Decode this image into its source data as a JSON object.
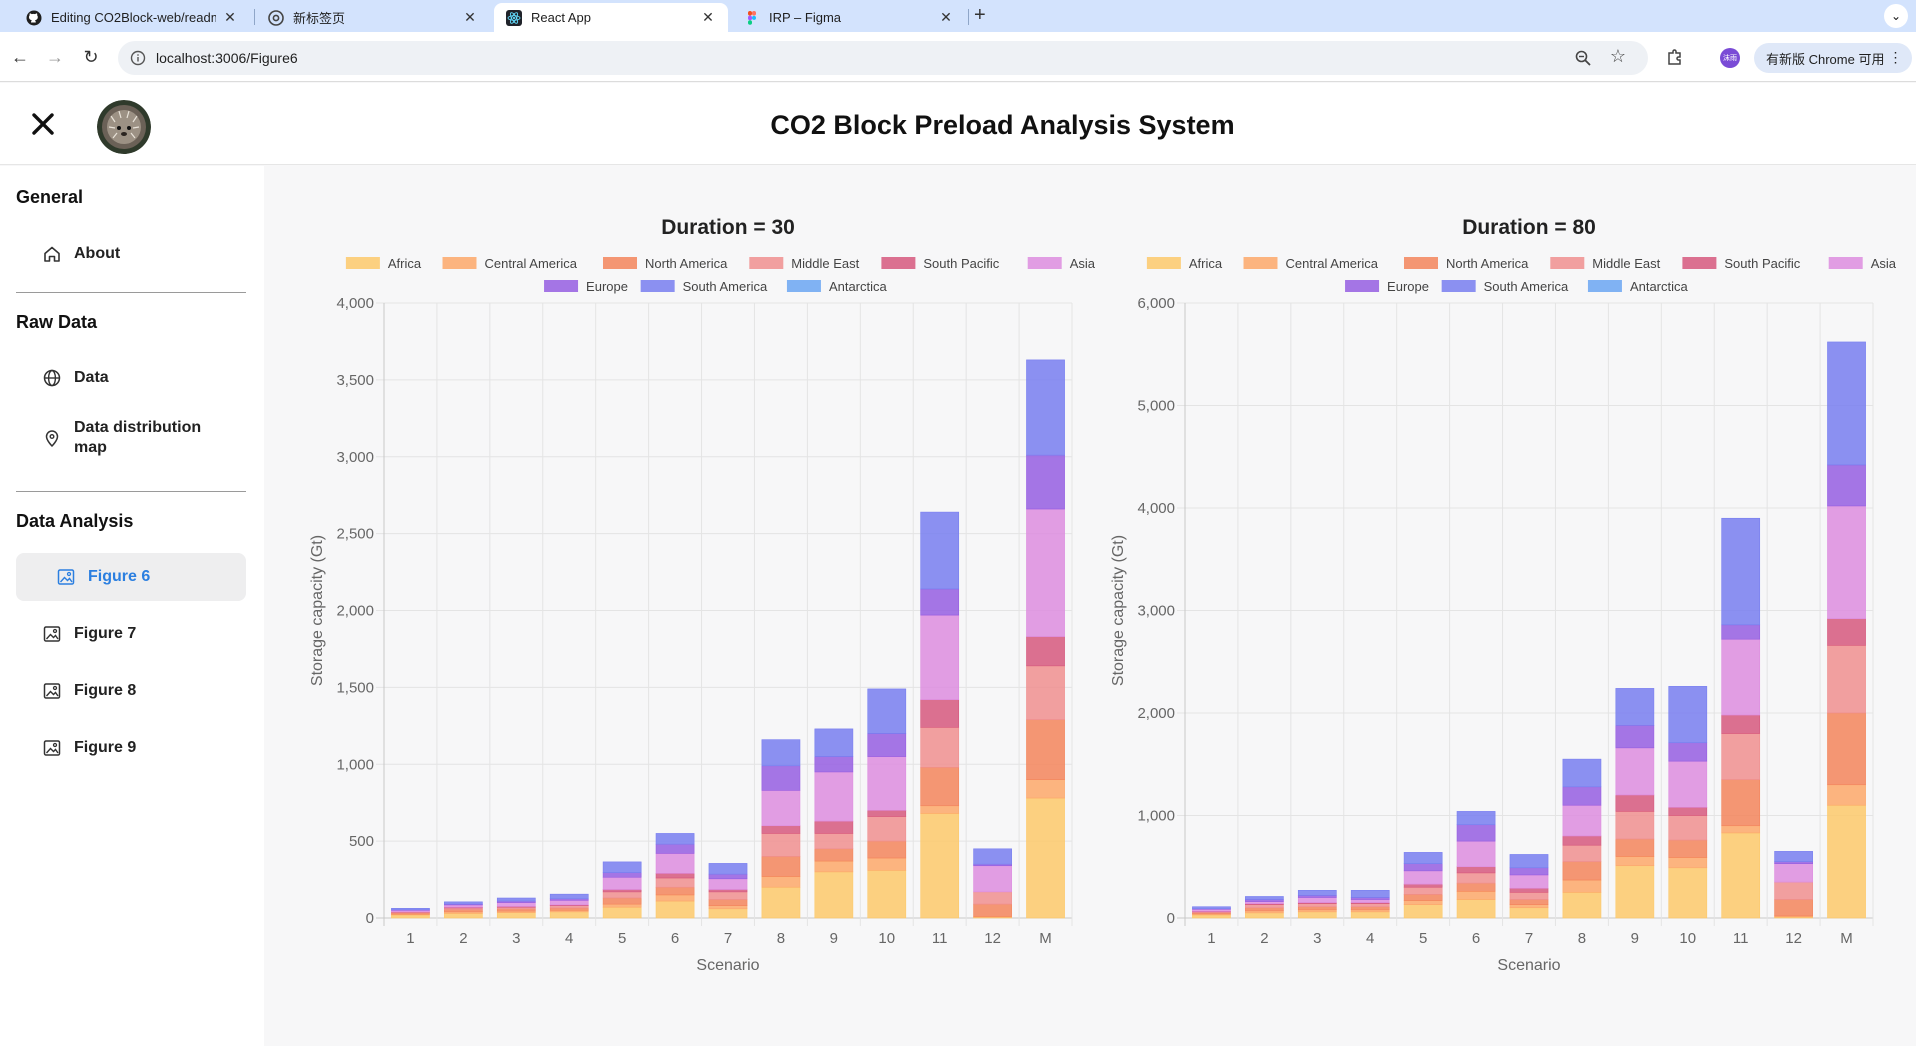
{
  "browser": {
    "tabs": [
      {
        "title": "Editing CO2Block-web/readm",
        "icon": "github-icon"
      },
      {
        "title": "新标签页",
        "icon": "chrome-icon"
      },
      {
        "title": "React App",
        "icon": "react-icon"
      },
      {
        "title": "IRP – Figma",
        "icon": "figma-icon"
      }
    ],
    "url": "localhost:3006/Figure6",
    "update_label": "有新版 Chrome 可用",
    "profile_label": "沫雨"
  },
  "app": {
    "title": "CO2 Block Preload Analysis System"
  },
  "sidebar": {
    "sections": [
      {
        "title": "General",
        "items": [
          {
            "label": "About",
            "icon": "home-icon"
          }
        ]
      },
      {
        "title": "Raw Data",
        "items": [
          {
            "label": "Data",
            "icon": "globe-icon"
          },
          {
            "label": "Data distribution map",
            "icon": "location-pin-icon"
          }
        ]
      },
      {
        "title": "Data Analysis",
        "items": [
          {
            "label": "Figure 6",
            "icon": "image-icon",
            "active": true
          },
          {
            "label": "Figure 7",
            "icon": "image-icon"
          },
          {
            "label": "Figure 8",
            "icon": "image-icon"
          },
          {
            "label": "Figure 9",
            "icon": "image-icon"
          }
        ]
      }
    ]
  },
  "colors": {
    "Africa": "#fdc96b",
    "Central America": "#fda86a",
    "North America": "#f3855c",
    "Middle East": "#f08f8f",
    "South Pacific": "#d6587e",
    "Asia": "#dd8ddf",
    "Europe": "#955ee2",
    "South America": "#787ef0",
    "Antarctica": "#6ba6f2",
    "accent": "#2b7fe0"
  },
  "chart_data": [
    {
      "type": "bar",
      "stacked": true,
      "title": "Duration = 30",
      "xlabel": "Scenario",
      "ylabel": "Storage capacity (Gt)",
      "ylim": [
        0,
        4000
      ],
      "yticks": [
        0,
        500,
        1000,
        1500,
        2000,
        2500,
        3000,
        3500,
        4000
      ],
      "yticklabels": [
        "0",
        "500",
        "1,000",
        "1,500",
        "2,000",
        "2,500",
        "3,000",
        "3,500",
        "4,000"
      ],
      "grid": true,
      "legend_position": "top",
      "categories": [
        "1",
        "2",
        "3",
        "4",
        "5",
        "6",
        "7",
        "8",
        "9",
        "10",
        "11",
        "12",
        "M"
      ],
      "series": [
        {
          "name": "Africa",
          "values": [
            20,
            30,
            35,
            40,
            70,
            110,
            60,
            200,
            300,
            310,
            680,
            5,
            780
          ]
        },
        {
          "name": "Central America",
          "values": [
            5,
            10,
            10,
            10,
            20,
            40,
            20,
            70,
            70,
            80,
            50,
            5,
            120
          ]
        },
        {
          "name": "North America",
          "values": [
            8,
            15,
            15,
            15,
            40,
            50,
            40,
            130,
            80,
            110,
            250,
            80,
            390
          ]
        },
        {
          "name": "Middle East",
          "values": [
            5,
            10,
            10,
            15,
            40,
            60,
            50,
            150,
            100,
            160,
            260,
            80,
            350
          ]
        },
        {
          "name": "South Pacific",
          "values": [
            2,
            5,
            5,
            5,
            15,
            30,
            15,
            50,
            80,
            40,
            180,
            0,
            190
          ]
        },
        {
          "name": "Asia",
          "values": [
            10,
            15,
            25,
            30,
            80,
            130,
            70,
            230,
            320,
            350,
            550,
            170,
            830
          ]
        },
        {
          "name": "Europe",
          "values": [
            3,
            5,
            10,
            10,
            30,
            60,
            30,
            160,
            100,
            150,
            170,
            10,
            350
          ]
        },
        {
          "name": "South America",
          "values": [
            10,
            15,
            20,
            30,
            70,
            70,
            70,
            170,
            180,
            290,
            500,
            100,
            620
          ]
        },
        {
          "name": "Antarctica",
          "values": [
            0,
            0,
            0,
            0,
            0,
            0,
            0,
            0,
            0,
            0,
            0,
            0,
            0
          ]
        }
      ]
    },
    {
      "type": "bar",
      "stacked": true,
      "title": "Duration = 80",
      "xlabel": "Scenario",
      "ylabel": "Storage capacity (Gt)",
      "ylim": [
        0,
        6000
      ],
      "yticks": [
        0,
        1000,
        2000,
        3000,
        4000,
        5000,
        6000
      ],
      "yticklabels": [
        "0",
        "1,000",
        "2,000",
        "3,000",
        "4,000",
        "5,000",
        "6,000"
      ],
      "grid": true,
      "legend_position": "top",
      "categories": [
        "1",
        "2",
        "3",
        "4",
        "5",
        "6",
        "7",
        "8",
        "9",
        "10",
        "11",
        "12",
        "M"
      ],
      "series": [
        {
          "name": "Africa",
          "values": [
            30,
            50,
            60,
            60,
            130,
            180,
            100,
            250,
            510,
            490,
            830,
            10,
            1100
          ]
        },
        {
          "name": "Central America",
          "values": [
            10,
            20,
            20,
            20,
            40,
            80,
            30,
            120,
            90,
            100,
            70,
            10,
            200
          ]
        },
        {
          "name": "North America",
          "values": [
            10,
            30,
            30,
            30,
            60,
            80,
            50,
            180,
            170,
            170,
            450,
            160,
            700
          ]
        },
        {
          "name": "Middle East",
          "values": [
            10,
            30,
            30,
            30,
            70,
            100,
            70,
            160,
            270,
            240,
            450,
            170,
            660
          ]
        },
        {
          "name": "South Pacific",
          "values": [
            5,
            10,
            10,
            10,
            30,
            60,
            40,
            90,
            160,
            80,
            180,
            0,
            260
          ]
        },
        {
          "name": "Asia",
          "values": [
            20,
            20,
            50,
            30,
            130,
            250,
            130,
            300,
            460,
            450,
            740,
            180,
            1100
          ]
        },
        {
          "name": "Europe",
          "values": [
            5,
            20,
            20,
            20,
            70,
            160,
            70,
            180,
            220,
            180,
            140,
            20,
            400
          ]
        },
        {
          "name": "South America",
          "values": [
            20,
            30,
            50,
            70,
            110,
            130,
            130,
            270,
            360,
            550,
            1040,
            100,
            1200
          ]
        },
        {
          "name": "Antarctica",
          "values": [
            0,
            0,
            0,
            0,
            0,
            0,
            0,
            0,
            0,
            0,
            0,
            0,
            0
          ]
        }
      ]
    }
  ]
}
